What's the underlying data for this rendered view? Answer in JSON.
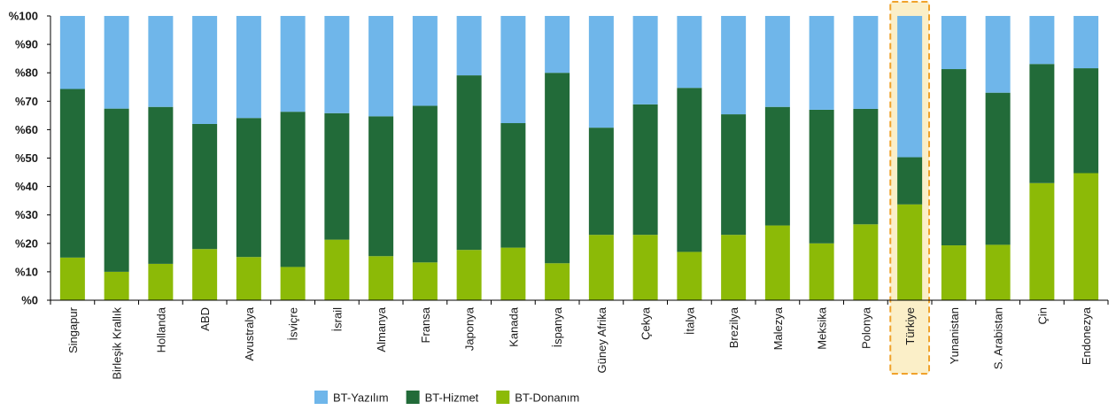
{
  "chart_data": {
    "type": "bar",
    "stacked": true,
    "percent": true,
    "categories": [
      "Singapur",
      "Birleşik Krallık",
      "Hollanda",
      "ABD",
      "Avustralya",
      "İsviçre",
      "İsrail",
      "Almanya",
      "Fransa",
      "Japonya",
      "Kanada",
      "İspanya",
      "Güney Afrika",
      "Çekya",
      "İtalya",
      "Brezilya",
      "Malezya",
      "Meksika",
      "Polonya",
      "Türkiye",
      "Yunanistan",
      "S. Arabistan",
      "Çin",
      "Endonezya"
    ],
    "series": [
      {
        "name": "BT-Donanım",
        "color": "#8cba07",
        "values": [
          15,
          10,
          12.8,
          18,
          15.2,
          11.7,
          21.3,
          15.5,
          13.3,
          17.7,
          18.5,
          13,
          23,
          23,
          17,
          23,
          26.3,
          20,
          26.7,
          33.7,
          19.3,
          19.5,
          41.2,
          44.7
        ]
      },
      {
        "name": "BT-Hizmet",
        "color": "#226b39",
        "values": [
          59.3,
          57.4,
          55.2,
          44,
          48.9,
          54.6,
          44.5,
          49.2,
          55.1,
          61.4,
          43.8,
          67,
          37.7,
          45.9,
          57.7,
          42.4,
          41.7,
          47,
          40.6,
          16.6,
          62,
          53.5,
          41.9,
          36.9
        ]
      },
      {
        "name": "BT-Yazılım",
        "color": "#6fb6ea",
        "values": [
          25.7,
          32.6,
          32,
          38,
          35.9,
          33.7,
          34.2,
          35.3,
          31.6,
          20.9,
          37.7,
          20,
          39.3,
          31.1,
          25.3,
          34.6,
          32,
          33,
          32.7,
          49.7,
          18.7,
          27,
          16.9,
          18.4
        ]
      }
    ],
    "legend_order": [
      "BT-Yazılım",
      "BT-Hizmet",
      "BT-Donanım"
    ],
    "y_ticks": [
      "%0",
      "%10",
      "%20",
      "%30",
      "%40",
      "%50",
      "%60",
      "%70",
      "%80",
      "%90",
      "%100"
    ],
    "ylim": [
      0,
      100
    ],
    "highlight_category": "Türkiye",
    "highlight_fill": "#fbefc8",
    "highlight_stroke": "#f0a22b",
    "legend_position": "bottom-center",
    "grid": false
  }
}
